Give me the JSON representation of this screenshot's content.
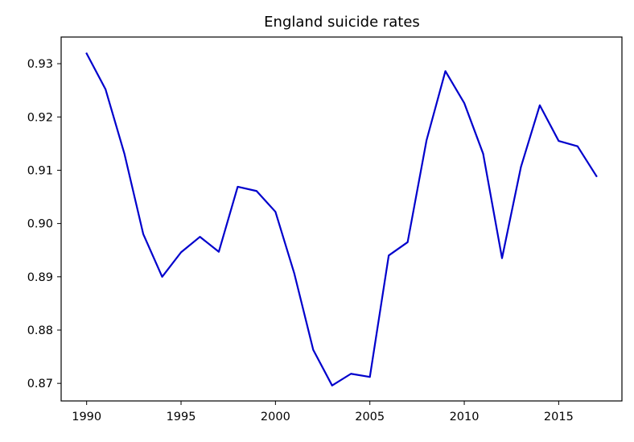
{
  "chart_data": {
    "type": "line",
    "title": "England suicide rates",
    "xlabel": "",
    "ylabel": "",
    "xlim": [
      1988.65,
      2018.35
    ],
    "ylim": [
      0.8667,
      0.935
    ],
    "xticks": [
      1990,
      1995,
      2000,
      2005,
      2010,
      2015
    ],
    "yticks": [
      0.87,
      0.88,
      0.89,
      0.9,
      0.91,
      0.92,
      0.93
    ],
    "ytick_labels": [
      "0.87",
      "0.88",
      "0.89",
      "0.90",
      "0.91",
      "0.92",
      "0.93"
    ],
    "grid": false,
    "legend": "none",
    "series": [
      {
        "color": "#0000cc",
        "x": [
          1990,
          1991,
          1992,
          1993,
          1994,
          1995,
          1996,
          1997,
          1998,
          1999,
          2000,
          2001,
          2002,
          2003,
          2004,
          2005,
          2006,
          2007,
          2008,
          2009,
          2010,
          2011,
          2012,
          2013,
          2014,
          2015,
          2016,
          2017
        ],
        "y": [
          0.9319,
          0.9252,
          0.9131,
          0.898,
          0.89,
          0.8946,
          0.8975,
          0.8947,
          0.9069,
          0.9061,
          0.9022,
          0.8906,
          0.8763,
          0.8696,
          0.8718,
          0.8712,
          0.894,
          0.8965,
          0.9156,
          0.9286,
          0.9226,
          0.9131,
          0.8935,
          0.9106,
          0.9222,
          0.9155,
          0.9145,
          0.9089
        ]
      }
    ]
  }
}
